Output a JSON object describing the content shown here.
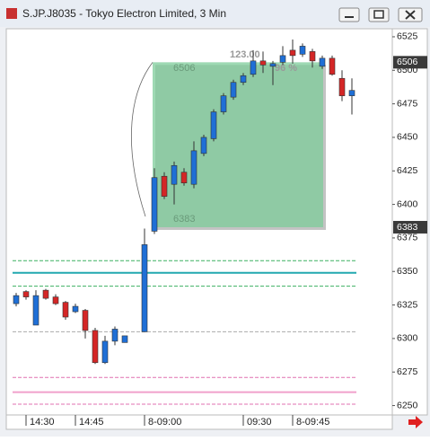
{
  "window": {
    "title": "S.JP.J8035 - Tokyo Electron Limited, 3 Min"
  },
  "chart_data": {
    "type": "candlestick",
    "categories": [
      null,
      "14:30",
      null,
      null,
      null,
      null,
      "14:45",
      null,
      null,
      null,
      null,
      null,
      "8-09:00",
      null,
      null,
      null,
      null,
      null,
      null,
      null,
      null,
      null,
      "09:30",
      null,
      null,
      null,
      null,
      "8-09:45",
      null,
      null,
      null,
      null,
      null,
      null
    ],
    "open": [
      6326,
      6335,
      6310,
      6336,
      6331,
      6327,
      6320,
      6321,
      6306,
      6282,
      6298,
      6297,
      6305,
      6380,
      6421,
      6415,
      6424,
      6415,
      6438,
      6449,
      6469,
      6480,
      6491,
      6497,
      6507,
      6503,
      6506,
      6515,
      6512,
      6514,
      6503,
      6509,
      6494,
      6481
    ],
    "high": [
      6334,
      6336,
      6336,
      6337,
      6333,
      6328,
      6326,
      6322,
      6308,
      6302,
      6309,
      6302,
      6382,
      6427,
      6424,
      6432,
      6427,
      6447,
      6452,
      6471,
      6483,
      6493,
      6498,
      6515,
      6514,
      6507,
      6518,
      6523,
      6520,
      6516,
      6511,
      6511,
      6500,
      6494
    ],
    "low": [
      6324,
      6329,
      6310,
      6329,
      6325,
      6314,
      6319,
      6300,
      6281,
      6281,
      6295,
      6297,
      6305,
      6378,
      6404,
      6400,
      6414,
      6412,
      6436,
      6447,
      6467,
      6478,
      6489,
      6495,
      6498,
      6489,
      6504,
      6505,
      6510,
      6502,
      6501,
      6496,
      6477,
      6467
    ],
    "close": [
      6332,
      6331,
      6332,
      6330,
      6326,
      6316,
      6324,
      6306,
      6282,
      6298,
      6307,
      6302,
      6370,
      6420,
      6406,
      6429,
      6416,
      6440,
      6450,
      6469,
      6481,
      6491,
      6496,
      6507,
      6504,
      6505,
      6511,
      6511,
      6518,
      6507,
      6509,
      6497,
      6481,
      6485
    ],
    "up_color": "#1f6fd6",
    "down_color": "#d42626",
    "ylim": [
      6243,
      6531
    ],
    "yticks": [
      6250,
      6275,
      6300,
      6325,
      6350,
      6375,
      6400,
      6425,
      6450,
      6475,
      6500,
      6525
    ],
    "price_markers": [
      6506,
      6383
    ],
    "box": {
      "top": 6506,
      "bottom": 6383,
      "color": "#7dcc9a"
    },
    "annotations": [
      "123.00",
      "96 %"
    ],
    "levels": [
      {
        "value": 6358,
        "color": "#3cb060",
        "dash": true
      },
      {
        "value": 6349,
        "color": "#22a8b0",
        "dash": false
      },
      {
        "value": 6339,
        "color": "#3cb060",
        "dash": true
      },
      {
        "value": 6305,
        "color": "#aaaaaa",
        "dash": true
      },
      {
        "value": 6271,
        "color": "#e070b0",
        "dash": true
      },
      {
        "value": 6260,
        "color": "#f0a0cc",
        "dash": false
      },
      {
        "value": 6251,
        "color": "#e070b0",
        "dash": true
      }
    ]
  }
}
